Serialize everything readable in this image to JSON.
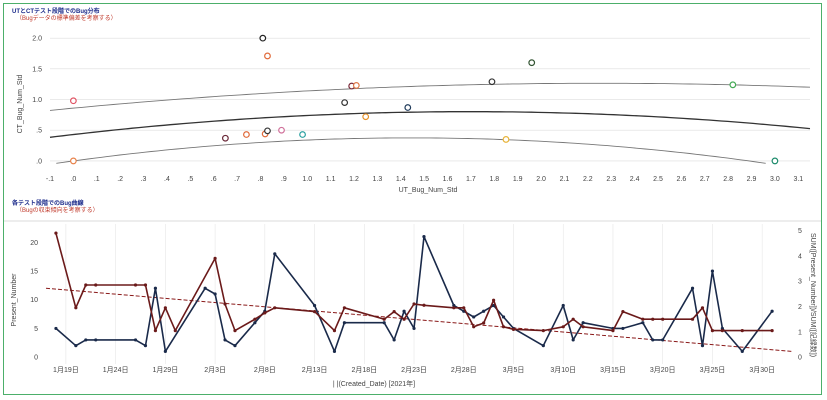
{
  "scatter_title": "UTとCTテスト段階でのBug分布",
  "scatter_subtitle": "（Bugデータの標準偏差を考察する）",
  "line_title": "各テスト段階でのBug曲線",
  "line_subtitle": "（Bugの収束傾向を考察する）",
  "chart_data": [
    {
      "type": "scatter",
      "xlabel": "UT_Bug_Num_Std",
      "ylabel": "CT_Bug_Num_Std",
      "xlim": [
        -0.1,
        3.15
      ],
      "ylim": [
        -0.05,
        2.1
      ],
      "x_ticks": [
        "-.1",
        ".0",
        ".1",
        ".2",
        ".3",
        ".4",
        ".5",
        ".6",
        ".7",
        ".8",
        ".9",
        "1.0",
        "1.1",
        "1.2",
        "1.3",
        "1.4",
        "1.5",
        "1.6",
        "1.7",
        "1.8",
        "1.9",
        "2.0",
        "2.1",
        "2.2",
        "2.3",
        "2.4",
        "2.5",
        "2.6",
        "2.7",
        "2.8",
        "2.9",
        "3.0",
        "3.1"
      ],
      "x_tick_values": [
        -0.1,
        0,
        0.1,
        0.2,
        0.3,
        0.4,
        0.5,
        0.6,
        0.7,
        0.8,
        0.9,
        1.0,
        1.1,
        1.2,
        1.3,
        1.4,
        1.5,
        1.6,
        1.7,
        1.8,
        1.9,
        2.0,
        2.1,
        2.2,
        2.3,
        2.4,
        2.5,
        2.6,
        2.7,
        2.8,
        2.9,
        3.0,
        3.1
      ],
      "y_ticks": [
        ".0",
        ".5",
        "1.0",
        "1.5",
        "2.0"
      ],
      "y_tick_values": [
        0,
        0.5,
        1.0,
        1.5,
        2.0
      ],
      "points": [
        {
          "x": 0.0,
          "y": 0.98,
          "color": "#e05565"
        },
        {
          "x": 0.0,
          "y": 0.0,
          "color": "#e8824a"
        },
        {
          "x": 0.65,
          "y": 0.37,
          "color": "#6b2a3a"
        },
        {
          "x": 0.74,
          "y": 0.43,
          "color": "#e06a3a"
        },
        {
          "x": 0.81,
          "y": 2.0,
          "color": "#222222"
        },
        {
          "x": 0.83,
          "y": 1.71,
          "color": "#e06a3a"
        },
        {
          "x": 0.82,
          "y": 0.44,
          "color": "#e06a3a"
        },
        {
          "x": 0.83,
          "y": 0.49,
          "color": "#333333"
        },
        {
          "x": 0.89,
          "y": 0.5,
          "color": "#d0709a"
        },
        {
          "x": 0.98,
          "y": 0.43,
          "color": "#2aa0a0"
        },
        {
          "x": 1.16,
          "y": 0.95,
          "color": "#333333"
        },
        {
          "x": 1.19,
          "y": 1.22,
          "color": "#7a2a3a"
        },
        {
          "x": 1.21,
          "y": 1.23,
          "color": "#e07a4a"
        },
        {
          "x": 1.25,
          "y": 0.72,
          "color": "#e6922a"
        },
        {
          "x": 1.43,
          "y": 0.87,
          "color": "#1f3a5a"
        },
        {
          "x": 1.79,
          "y": 1.29,
          "color": "#333333"
        },
        {
          "x": 1.85,
          "y": 0.35,
          "color": "#e8b43a"
        },
        {
          "x": 1.96,
          "y": 1.6,
          "color": "#335533"
        },
        {
          "x": 2.82,
          "y": 1.24,
          "color": "#44aa55"
        },
        {
          "x": 3.0,
          "y": 0.0,
          "color": "#1a8a6a"
        }
      ],
      "trend": {
        "a": 0.43,
        "b": 0.44,
        "c": -0.13,
        "color": "#333333"
      },
      "band_upper": {
        "a": 0.86,
        "b": 0.36,
        "c": -0.08,
        "color": "#777777"
      },
      "band_lower": {
        "a": 0.0,
        "b": 0.52,
        "c": -0.18,
        "color": "#777777"
      }
    },
    {
      "type": "line",
      "xlabel": "| |(Created_Date) [2021年]",
      "ylabel": "Present_Number",
      "y2label": "SUM([Present_Number])/SUM([記録数])",
      "x_ticks": [
        "1月19日",
        "1月24日",
        "1月29日",
        "2月3日",
        "2月8日",
        "2月13日",
        "2月18日",
        "2月23日",
        "2月28日",
        "3月5日",
        "3月10日",
        "3月15日",
        "3月20日",
        "3月25日",
        "3月30日"
      ],
      "x_tick_days": [
        18,
        23,
        28,
        33,
        38,
        43,
        48,
        53,
        58,
        63,
        68,
        73,
        78,
        83,
        88
      ],
      "xlim_days": [
        16,
        91
      ],
      "y_ticks": [
        "0",
        "5",
        "10",
        "15",
        "20"
      ],
      "y_tick_values": [
        0,
        5,
        10,
        15,
        20
      ],
      "ylim": [
        -0.5,
        22.5
      ],
      "y2_ticks": [
        "0",
        "1",
        "2",
        "3",
        "4",
        "5"
      ],
      "y2_tick_values": [
        0,
        1,
        2,
        3,
        4,
        5
      ],
      "y2lim": [
        -0.11,
        5.1
      ],
      "series": [
        {
          "color": "#1a2a4a",
          "axis": "left",
          "points": [
            [
              17,
              5
            ],
            [
              19,
              2
            ],
            [
              20,
              3
            ],
            [
              21,
              3
            ],
            [
              25,
              3
            ],
            [
              26,
              2
            ],
            [
              27,
              12
            ],
            [
              28,
              1
            ],
            [
              32,
              12
            ],
            [
              33,
              11
            ],
            [
              34,
              3
            ],
            [
              35,
              2
            ],
            [
              37,
              6
            ],
            [
              38,
              8
            ],
            [
              39,
              18
            ],
            [
              43,
              9
            ],
            [
              45,
              1
            ],
            [
              46,
              6
            ],
            [
              50,
              6
            ],
            [
              51,
              3
            ],
            [
              52,
              8
            ],
            [
              53,
              5
            ],
            [
              54,
              21
            ],
            [
              57,
              9
            ],
            [
              58,
              8
            ],
            [
              59,
              7
            ],
            [
              60,
              8
            ],
            [
              61,
              9
            ],
            [
              62,
              7
            ],
            [
              63,
              5
            ],
            [
              66,
              2
            ],
            [
              68,
              9
            ],
            [
              69,
              3
            ],
            [
              70,
              6
            ],
            [
              73,
              5
            ],
            [
              74,
              5
            ],
            [
              76,
              6
            ],
            [
              77,
              3
            ],
            [
              78,
              3
            ],
            [
              81,
              12
            ],
            [
              82,
              2
            ],
            [
              83,
              15
            ],
            [
              84,
              5
            ],
            [
              86,
              1
            ],
            [
              89,
              8
            ]
          ]
        },
        {
          "color": "#6b1a1a",
          "axis": "right",
          "points": [
            [
              17,
              4.9
            ],
            [
              19,
              1.95
            ],
            [
              20,
              2.85
            ],
            [
              21,
              2.85
            ],
            [
              25,
              2.85
            ],
            [
              26,
              2.85
            ],
            [
              27,
              1.05
            ],
            [
              28,
              1.95
            ],
            [
              29,
              1.05
            ],
            [
              33,
              3.9
            ],
            [
              34,
              2.1
            ],
            [
              35,
              1.05
            ],
            [
              37,
              1.5
            ],
            [
              38,
              1.75
            ],
            [
              39,
              1.95
            ],
            [
              43,
              1.8
            ],
            [
              45,
              1.05
            ],
            [
              46,
              1.95
            ],
            [
              50,
              1.5
            ],
            [
              51,
              1.8
            ],
            [
              52,
              1.5
            ],
            [
              53,
              2.1
            ],
            [
              54,
              2.05
            ],
            [
              57,
              1.95
            ],
            [
              58,
              1.95
            ],
            [
              59,
              1.2
            ],
            [
              60,
              1.35
            ],
            [
              61,
              2.25
            ],
            [
              62,
              1.2
            ],
            [
              63,
              1.1
            ],
            [
              66,
              1.05
            ],
            [
              68,
              1.2
            ],
            [
              69,
              1.5
            ],
            [
              70,
              1.2
            ],
            [
              73,
              1.05
            ],
            [
              74,
              1.8
            ],
            [
              76,
              1.5
            ],
            [
              77,
              1.5
            ],
            [
              78,
              1.5
            ],
            [
              81,
              1.5
            ],
            [
              82,
              1.95
            ],
            [
              83,
              1.05
            ],
            [
              84,
              1.05
            ],
            [
              86,
              1.05
            ],
            [
              89,
              1.05
            ]
          ]
        }
      ],
      "trend": {
        "x": [
          16,
          91
        ],
        "y": [
          12.0,
          1.0
        ],
        "color": "#8a1a1a"
      }
    }
  ]
}
